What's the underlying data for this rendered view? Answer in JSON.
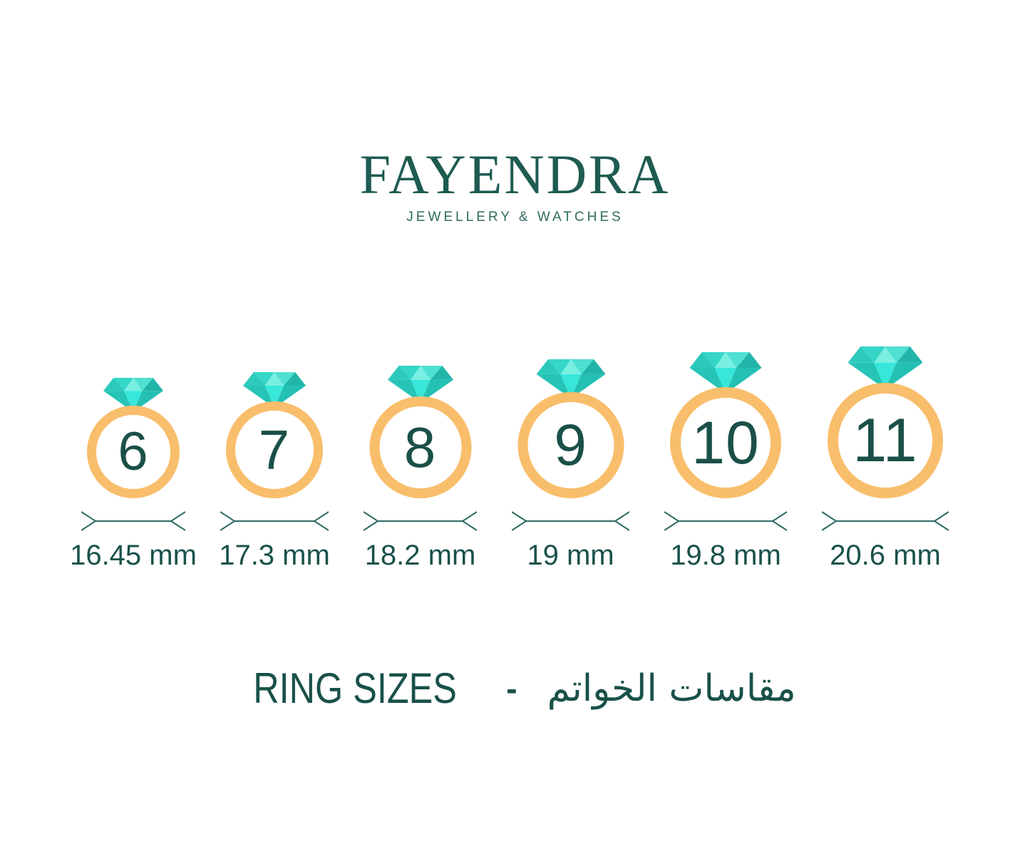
{
  "brand": {
    "name": "FAYENDRA",
    "tagline": "JEWELLERY & WATCHES"
  },
  "rings": [
    {
      "size": "6",
      "diameter": "16.45 mm"
    },
    {
      "size": "7",
      "diameter": "17.3 mm"
    },
    {
      "size": "8",
      "diameter": "18.2 mm"
    },
    {
      "size": "9",
      "diameter": "19 mm"
    },
    {
      "size": "10",
      "diameter": "19.8 mm"
    },
    {
      "size": "11",
      "diameter": "20.6 mm"
    }
  ],
  "footer": {
    "title_en": "RING SIZES",
    "separator": "-",
    "title_ar": "مقاسات الخواتم"
  },
  "colors": {
    "brand_teal": "#1E5B51",
    "tagline_teal": "#2F6A5F",
    "text_teal": "#1A5048",
    "band_orange": "#F8BE6B",
    "arrow_teal": "#2E6B62",
    "diamond": [
      "#2BCABD",
      "#35D6C8",
      "#78EFE1",
      "#4FE0D2",
      "#21B5A9",
      "#26C4B7",
      "#36E7DA",
      "#24C0B3"
    ]
  }
}
